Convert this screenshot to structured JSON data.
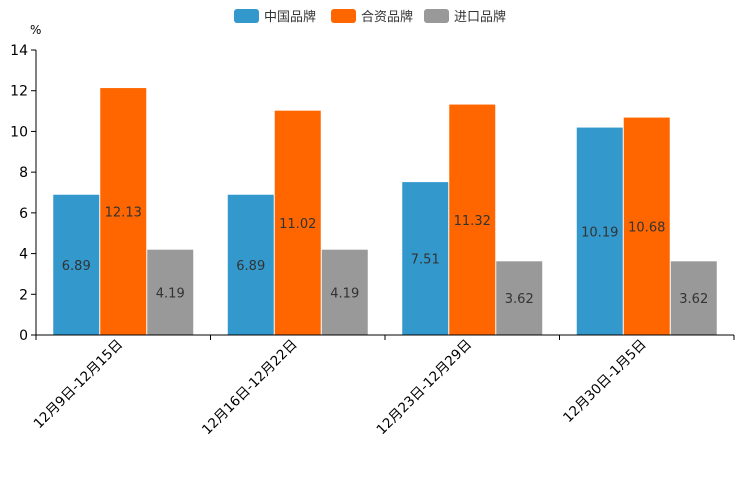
{
  "colors": {
    "china": "#3399cc",
    "jv": "#ff6600",
    "import": "#999999",
    "axis": "#000000"
  },
  "chart_data": {
    "type": "bar",
    "title": "",
    "unit": "%",
    "xlabel": "",
    "ylabel": "%",
    "ylim": [
      0,
      14
    ],
    "yticks": [
      0,
      2,
      4,
      6,
      8,
      10,
      12,
      14
    ],
    "grid": false,
    "legend_position": "top-center",
    "categories": [
      "12月9日-12月15日",
      "12月16日-12月22日",
      "12月23日-12月29日",
      "12月30日-1月5日"
    ],
    "series": [
      {
        "name": "中国品牌",
        "color_key": "china",
        "values": [
          6.89,
          6.89,
          7.51,
          10.19
        ]
      },
      {
        "name": "合资品牌",
        "color_key": "jv",
        "values": [
          12.13,
          11.02,
          11.32,
          10.68
        ]
      },
      {
        "name": "进口品牌",
        "color_key": "import",
        "values": [
          4.19,
          4.19,
          3.62,
          3.62
        ]
      }
    ]
  }
}
